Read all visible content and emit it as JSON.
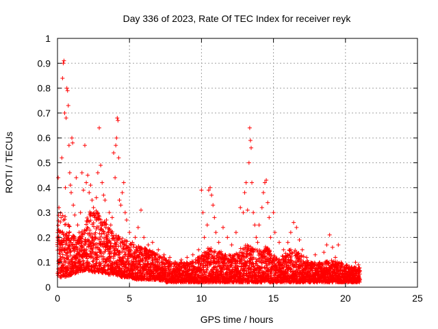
{
  "chart_data": {
    "type": "scatter",
    "title": "Day 336 of 2023, Rate Of TEC Index for receiver reyk",
    "xlabel": "GPS time / hours",
    "ylabel": "ROTI / TECUs",
    "xlim": [
      0,
      25
    ],
    "ylim": [
      0,
      1
    ],
    "x_ticks": [
      0,
      5,
      10,
      15,
      20,
      25
    ],
    "x_tick_labels": [
      "0",
      "5",
      "10",
      "15",
      "20",
      "25"
    ],
    "y_ticks": [
      0,
      0.1,
      0.2,
      0.3,
      0.4,
      0.5,
      0.6,
      0.7,
      0.8,
      0.9,
      1
    ],
    "y_tick_labels": [
      "0",
      "0.1",
      "0.2",
      "0.3",
      "0.4",
      "0.5",
      "0.6",
      "0.7",
      "0.8",
      "0.9",
      "1"
    ],
    "grid": true,
    "marker": "+",
    "color": "#ff0000",
    "series": [
      {
        "points": [
          [
            0.05,
            0.44
          ],
          [
            0.1,
            0.32
          ],
          [
            0.15,
            0.22
          ],
          [
            0.2,
            0.15
          ],
          [
            0.25,
            0.28
          ],
          [
            0.3,
            0.52
          ],
          [
            0.35,
            0.84
          ],
          [
            0.4,
            0.9
          ],
          [
            0.45,
            0.91
          ],
          [
            0.5,
            0.7
          ],
          [
            0.55,
            0.4
          ],
          [
            0.6,
            0.68
          ],
          [
            0.65,
            0.8
          ],
          [
            0.7,
            0.79
          ],
          [
            0.75,
            0.73
          ],
          [
            0.8,
            0.57
          ],
          [
            0.85,
            0.46
          ],
          [
            0.9,
            0.41
          ],
          [
            0.95,
            0.38
          ],
          [
            1.0,
            0.6
          ],
          [
            1.05,
            0.58
          ],
          [
            1.1,
            0.33
          ],
          [
            1.2,
            0.29
          ],
          [
            1.3,
            0.44
          ],
          [
            1.4,
            0.25
          ],
          [
            1.5,
            0.22
          ],
          [
            1.6,
            0.3
          ],
          [
            1.7,
            0.46
          ],
          [
            1.8,
            0.39
          ],
          [
            1.9,
            0.57
          ],
          [
            2.0,
            0.42
          ],
          [
            2.1,
            0.45
          ],
          [
            2.2,
            0.38
          ],
          [
            2.3,
            0.41
          ],
          [
            2.4,
            0.35
          ],
          [
            2.5,
            0.32
          ],
          [
            2.6,
            0.28
          ],
          [
            2.7,
            0.36
          ],
          [
            2.8,
            0.46
          ],
          [
            2.9,
            0.64
          ],
          [
            3.0,
            0.49
          ],
          [
            3.1,
            0.42
          ],
          [
            3.2,
            0.37
          ],
          [
            3.3,
            0.35
          ],
          [
            3.4,
            0.27
          ],
          [
            3.5,
            0.22
          ],
          [
            3.6,
            0.3
          ],
          [
            3.7,
            0.25
          ],
          [
            3.8,
            0.28
          ],
          [
            3.9,
            0.54
          ],
          [
            4.0,
            0.44
          ],
          [
            4.05,
            0.57
          ],
          [
            4.1,
            0.6
          ],
          [
            4.15,
            0.68
          ],
          [
            4.2,
            0.67
          ],
          [
            4.25,
            0.52
          ],
          [
            4.3,
            0.35
          ],
          [
            4.4,
            0.33
          ],
          [
            4.5,
            0.38
          ],
          [
            4.6,
            0.42
          ],
          [
            4.7,
            0.3
          ],
          [
            4.8,
            0.27
          ],
          [
            5.0,
            0.22
          ],
          [
            5.2,
            0.18
          ],
          [
            5.4,
            0.2
          ],
          [
            5.6,
            0.24
          ],
          [
            5.8,
            0.31
          ],
          [
            6.0,
            0.2
          ],
          [
            6.3,
            0.17
          ],
          [
            6.6,
            0.18
          ],
          [
            7.0,
            0.15
          ],
          [
            7.4,
            0.13
          ],
          [
            7.8,
            0.12
          ],
          [
            8.2,
            0.1
          ],
          [
            8.6,
            0.11
          ],
          [
            9.0,
            0.12
          ],
          [
            9.4,
            0.13
          ],
          [
            9.8,
            0.15
          ],
          [
            10.0,
            0.39
          ],
          [
            10.1,
            0.3
          ],
          [
            10.2,
            0.2
          ],
          [
            10.4,
            0.25
          ],
          [
            10.5,
            0.39
          ],
          [
            10.6,
            0.4
          ],
          [
            10.7,
            0.37
          ],
          [
            10.8,
            0.33
          ],
          [
            10.9,
            0.28
          ],
          [
            11.0,
            0.22
          ],
          [
            11.2,
            0.18
          ],
          [
            11.5,
            0.24
          ],
          [
            11.8,
            0.2
          ],
          [
            12.1,
            0.17
          ],
          [
            12.4,
            0.22
          ],
          [
            12.7,
            0.32
          ],
          [
            12.9,
            0.3
          ],
          [
            13.0,
            0.38
          ],
          [
            13.1,
            0.42
          ],
          [
            13.2,
            0.31
          ],
          [
            13.3,
            0.5
          ],
          [
            13.35,
            0.64
          ],
          [
            13.4,
            0.59
          ],
          [
            13.45,
            0.56
          ],
          [
            13.5,
            0.42
          ],
          [
            13.6,
            0.3
          ],
          [
            13.7,
            0.25
          ],
          [
            13.8,
            0.2
          ],
          [
            13.9,
            0.18
          ],
          [
            14.0,
            0.25
          ],
          [
            14.2,
            0.32
          ],
          [
            14.3,
            0.38
          ],
          [
            14.4,
            0.42
          ],
          [
            14.5,
            0.43
          ],
          [
            14.6,
            0.34
          ],
          [
            14.7,
            0.28
          ],
          [
            14.8,
            0.2
          ],
          [
            15.0,
            0.3
          ],
          [
            15.1,
            0.22
          ],
          [
            15.4,
            0.18
          ],
          [
            15.7,
            0.15
          ],
          [
            16.0,
            0.18
          ],
          [
            16.2,
            0.22
          ],
          [
            16.4,
            0.26
          ],
          [
            16.6,
            0.24
          ],
          [
            16.8,
            0.19
          ],
          [
            17.0,
            0.15
          ],
          [
            17.3,
            0.12
          ],
          [
            17.6,
            0.1
          ],
          [
            17.9,
            0.13
          ],
          [
            18.2,
            0.1
          ],
          [
            18.5,
            0.14
          ],
          [
            18.7,
            0.17
          ],
          [
            18.9,
            0.21
          ],
          [
            19.1,
            0.16
          ],
          [
            19.3,
            0.12
          ],
          [
            19.5,
            0.17
          ],
          [
            19.7,
            0.1
          ],
          [
            19.9,
            0.08
          ],
          [
            20.1,
            0.09
          ],
          [
            20.3,
            0.07
          ],
          [
            20.5,
            0.06
          ],
          [
            20.7,
            0.1
          ],
          [
            20.9,
            0.09
          ],
          [
            20.95,
            0.06
          ]
        ]
      }
    ],
    "envelope": {
      "x": [
        0,
        0.5,
        1,
        1.5,
        2,
        2.5,
        3,
        3.5,
        4,
        4.5,
        5,
        5.5,
        6,
        6.5,
        7,
        7.5,
        8,
        8.5,
        9,
        9.5,
        10,
        10.5,
        11,
        11.5,
        12,
        12.5,
        13,
        13.5,
        14,
        14.5,
        15,
        15.5,
        16,
        16.5,
        17,
        17.5,
        18,
        18.5,
        19,
        19.5,
        20,
        20.5,
        21
      ],
      "low": [
        0.04,
        0.04,
        0.05,
        0.06,
        0.07,
        0.06,
        0.06,
        0.05,
        0.05,
        0.04,
        0.04,
        0.03,
        0.03,
        0.03,
        0.03,
        0.02,
        0.02,
        0.02,
        0.02,
        0.02,
        0.02,
        0.02,
        0.02,
        0.02,
        0.02,
        0.02,
        0.02,
        0.02,
        0.02,
        0.02,
        0.02,
        0.02,
        0.02,
        0.02,
        0.02,
        0.02,
        0.02,
        0.02,
        0.02,
        0.02,
        0.02,
        0.02,
        0.02
      ],
      "high": [
        0.3,
        0.3,
        0.22,
        0.2,
        0.28,
        0.33,
        0.3,
        0.24,
        0.22,
        0.2,
        0.18,
        0.17,
        0.16,
        0.15,
        0.13,
        0.12,
        0.1,
        0.1,
        0.1,
        0.11,
        0.13,
        0.16,
        0.15,
        0.14,
        0.13,
        0.14,
        0.18,
        0.16,
        0.15,
        0.17,
        0.13,
        0.12,
        0.15,
        0.16,
        0.13,
        0.1,
        0.1,
        0.1,
        0.11,
        0.1,
        0.09,
        0.08,
        0.08
      ]
    }
  }
}
